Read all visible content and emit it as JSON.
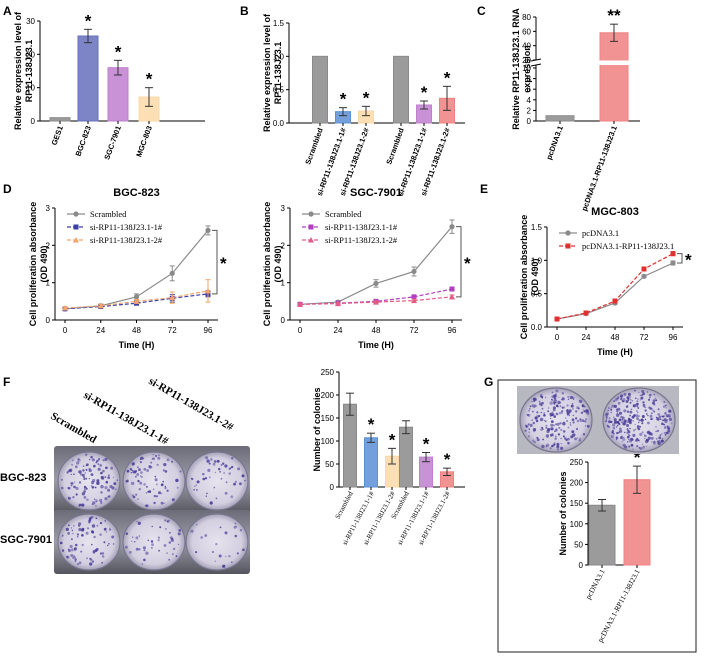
{
  "panel_letters": [
    "A",
    "B",
    "C",
    "D",
    "E",
    "F",
    "G"
  ],
  "colors": {
    "grey": "#8a8a8a",
    "blue": "#6670bd",
    "purple": "#c07fcf",
    "peach": "#fbd9a8",
    "lightblue": "#5b8fd6",
    "red": "#f08080",
    "navy": "#3b3fa8",
    "magenta": "#b13fc0",
    "orange": "#f2a46b",
    "pink": "#e65a86",
    "darkred": "#e03030"
  },
  "chart_data": [
    {
      "id": "A",
      "type": "bar",
      "ylabel": [
        "Relative expression level of",
        "RP11-138J23.1"
      ],
      "categories": [
        "GES1",
        "BGC-823",
        "SGC-7901",
        "MGC-803"
      ],
      "values": [
        1,
        25.5,
        16,
        7.2
      ],
      "errors": [
        0,
        2,
        2.2,
        2.8
      ],
      "colors": [
        "grey",
        "blue",
        "purple",
        "peach"
      ],
      "stars": [
        "",
        "*",
        "*",
        "*"
      ],
      "ylim": [
        0,
        30
      ],
      "yticks": [
        0,
        10,
        20,
        30
      ]
    },
    {
      "id": "B",
      "type": "bar",
      "ylabel": [
        "Relative expression level of",
        "RP11-138J23.1"
      ],
      "categories": [
        "Scrambled",
        "si-RP11-138J23.1-1#",
        "si-RP11-138J23.1-2#",
        "Scrambled",
        "si-RP11-138J23.1-1#",
        "si-RP11-138J23.1-2#"
      ],
      "values": [
        1,
        0.17,
        0.18,
        1,
        0.27,
        0.37
      ],
      "errors": [
        0,
        0.06,
        0.07,
        0,
        0.06,
        0.18
      ],
      "colors": [
        "grey",
        "lightblue",
        "peach",
        "grey",
        "purple",
        "red"
      ],
      "stars": [
        "",
        "*",
        "*",
        "",
        "*",
        "*"
      ],
      "ylim": [
        0,
        1.5
      ],
      "yticks": [
        0.0,
        0.5,
        1.0,
        1.5
      ]
    },
    {
      "id": "C",
      "type": "bar",
      "ylabel": [
        "Relative RP11-138J23.1 RNA",
        "expression"
      ],
      "categories": [
        "pcDNA3.1",
        "pcDNA3.1-RP11-138J23.1"
      ],
      "values": [
        1,
        58
      ],
      "errors": [
        0,
        12
      ],
      "colors": [
        "grey",
        "red"
      ],
      "stars": [
        "",
        "**"
      ],
      "yticks": [
        0,
        2,
        4,
        6,
        8,
        10,
        20,
        40,
        60,
        80
      ],
      "axis_break": [
        10,
        20
      ]
    },
    {
      "id": "D1",
      "type": "line",
      "title": "BGC-823",
      "ylabel": [
        "Cell proliferation absorbance",
        "(OD 490)"
      ],
      "xlabel": "Time (H)",
      "x": [
        0,
        24,
        48,
        72,
        96
      ],
      "ylim": [
        0,
        3
      ],
      "yticks": [
        0,
        1,
        2,
        3
      ],
      "series": [
        {
          "name": "Scrambled",
          "values": [
            0.3,
            0.38,
            0.62,
            1.25,
            2.4
          ],
          "errors": [
            0.03,
            0.05,
            0.08,
            0.2,
            0.12
          ],
          "color": "grey",
          "marker": "circle"
        },
        {
          "name": "si-RP11-138J23.1-1#",
          "values": [
            0.3,
            0.36,
            0.45,
            0.58,
            0.7
          ],
          "errors": [
            0.03,
            0.04,
            0.05,
            0.1,
            0.08
          ],
          "color": "navy",
          "marker": "square"
        },
        {
          "name": "si-RP11-138J23.1-2#",
          "values": [
            0.32,
            0.38,
            0.5,
            0.6,
            0.78
          ],
          "errors": [
            0.03,
            0.04,
            0.05,
            0.15,
            0.3
          ],
          "color": "orange",
          "marker": "triangle"
        }
      ],
      "star": "*"
    },
    {
      "id": "D2",
      "type": "line",
      "title": "SGC-7901",
      "ylabel": [
        "Cell proliferation absorbance",
        "(OD 490)"
      ],
      "xlabel": "Time (H)",
      "x": [
        0,
        24,
        48,
        72,
        96
      ],
      "ylim": [
        0,
        3
      ],
      "yticks": [
        0,
        1,
        2,
        3
      ],
      "series": [
        {
          "name": "Scrambled",
          "values": [
            0.42,
            0.48,
            0.98,
            1.3,
            2.5
          ],
          "errors": [
            0.04,
            0.04,
            0.1,
            0.12,
            0.18
          ],
          "color": "grey",
          "marker": "circle"
        },
        {
          "name": "si-RP11-138J23.1-1#",
          "values": [
            0.42,
            0.45,
            0.5,
            0.62,
            0.83
          ],
          "errors": [
            0.03,
            0.03,
            0.04,
            0.05,
            0.05
          ],
          "color": "magenta",
          "marker": "square"
        },
        {
          "name": "si-RP11-138J23.1-2#",
          "values": [
            0.42,
            0.44,
            0.48,
            0.52,
            0.62
          ],
          "errors": [
            0.03,
            0.03,
            0.03,
            0.04,
            0.05
          ],
          "color": "pink",
          "marker": "triangle"
        }
      ],
      "star": "*"
    },
    {
      "id": "E",
      "type": "line",
      "title": "MGC-803",
      "ylabel": [
        "Cell proliferation absorbance",
        "(OD 490)"
      ],
      "xlabel": "Time (H)",
      "x": [
        0,
        24,
        48,
        72,
        96
      ],
      "ylim": [
        0,
        1.5
      ],
      "yticks": [
        0.0,
        0.5,
        1.0,
        1.5
      ],
      "series": [
        {
          "name": "pcDNA3.1",
          "values": [
            0.12,
            0.2,
            0.36,
            0.76,
            0.96
          ],
          "errors": [
            0.01,
            0.01,
            0.02,
            0.02,
            0.03
          ],
          "color": "grey",
          "marker": "circle"
        },
        {
          "name": "pcDNA3.1-RP11-138J23.1",
          "values": [
            0.12,
            0.21,
            0.39,
            0.87,
            1.1
          ],
          "errors": [
            0.01,
            0.01,
            0.02,
            0.03,
            0.03
          ],
          "color": "darkred",
          "marker": "square"
        }
      ],
      "star": "*"
    },
    {
      "id": "F",
      "type": "bar",
      "ylabel": "Number of colonies",
      "categories": [
        "Scrambled",
        "si-RP11-138J23.1-1#",
        "si-RP11-138J23.1-2#",
        "Scrambled",
        "si-RP11-138J23.1-1#",
        "si-RP11-138J23.1-2#"
      ],
      "values": [
        180,
        107,
        67,
        130,
        65,
        33
      ],
      "errors": [
        24,
        10,
        17,
        14,
        10,
        8
      ],
      "colors": [
        "grey",
        "lightblue",
        "peach",
        "grey",
        "purple",
        "red"
      ],
      "stars": [
        "",
        "*",
        "*",
        "",
        "*",
        "*"
      ],
      "ylim": [
        0,
        250
      ],
      "yticks": [
        0,
        50,
        100,
        150,
        200,
        250
      ]
    },
    {
      "id": "G",
      "type": "bar",
      "ylabel": "Number of colonies",
      "categories": [
        "pcDNA3.1",
        "pcDNA3.1-RP11-138J23.1"
      ],
      "values": [
        145,
        207
      ],
      "errors": [
        14,
        33
      ],
      "colors": [
        "grey",
        "red"
      ],
      "stars": [
        "",
        "*"
      ],
      "ylim": [
        0,
        250
      ],
      "yticks": [
        0,
        50,
        100,
        150,
        200,
        250
      ]
    }
  ],
  "plate_photos": {
    "F_columns": [
      "Scrambled",
      "si-RP11-138J23.1-1#",
      "si-RP11-138J23.1-2#"
    ],
    "F_rows": [
      "BGC-823",
      "SGC-7901"
    ]
  }
}
